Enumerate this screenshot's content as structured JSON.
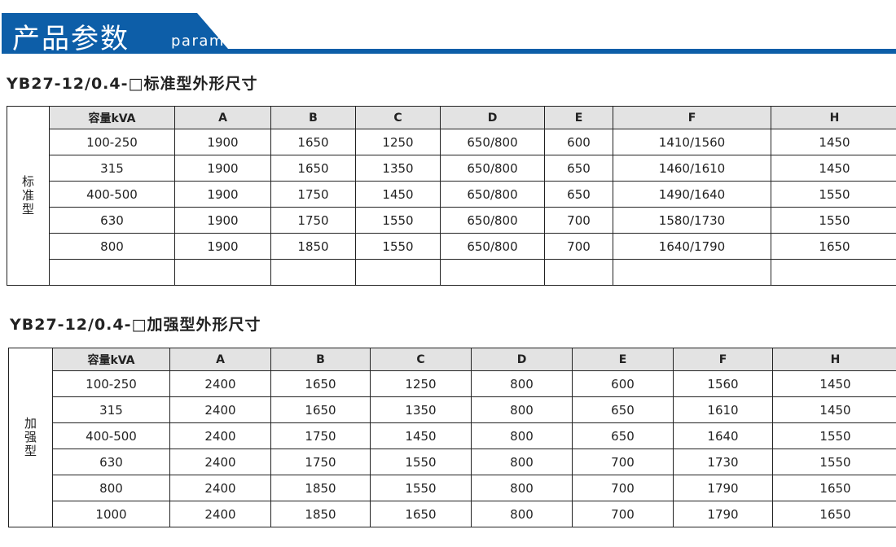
{
  "header": {
    "title": "产品参数",
    "subtitle": "parameter",
    "color": "#0d5ea8"
  },
  "standard": {
    "title": "YB27-12/0.4-□标准型外形尺寸",
    "side_label": "标准型",
    "columns": [
      "容量kVA",
      "A",
      "B",
      "C",
      "D",
      "E",
      "F",
      "H"
    ],
    "rows": [
      [
        "100-250",
        "1900",
        "1650",
        "1250",
        "650/800",
        "600",
        "1410/1560",
        "1450"
      ],
      [
        "315",
        "1900",
        "1650",
        "1350",
        "650/800",
        "650",
        "1460/1610",
        "1450"
      ],
      [
        "400-500",
        "1900",
        "1750",
        "1450",
        "650/800",
        "650",
        "1490/1640",
        "1550"
      ],
      [
        "630",
        "1900",
        "1750",
        "1550",
        "650/800",
        "700",
        "1580/1730",
        "1550"
      ],
      [
        "800",
        "1900",
        "1850",
        "1550",
        "650/800",
        "700",
        "1640/1790",
        "1650"
      ],
      [
        "",
        "",
        "",
        "",
        "",
        "",
        "",
        ""
      ]
    ]
  },
  "reinforced": {
    "title": "YB27-12/0.4-□加强型外形尺寸",
    "side_label": "加强型",
    "columns": [
      "容量kVA",
      "A",
      "B",
      "C",
      "D",
      "E",
      "F",
      "H"
    ],
    "rows": [
      [
        "100-250",
        "2400",
        "1650",
        "1250",
        "800",
        "600",
        "1560",
        "1450"
      ],
      [
        "315",
        "2400",
        "1650",
        "1350",
        "800",
        "650",
        "1610",
        "1450"
      ],
      [
        "400-500",
        "2400",
        "1750",
        "1450",
        "800",
        "650",
        "1640",
        "1550"
      ],
      [
        "630",
        "2400",
        "1750",
        "1550",
        "800",
        "700",
        "1730",
        "1550"
      ],
      [
        "800",
        "2400",
        "1850",
        "1550",
        "800",
        "700",
        "1790",
        "1650"
      ],
      [
        "1000",
        "2400",
        "1850",
        "1650",
        "800",
        "700",
        "1790",
        "1650"
      ]
    ]
  }
}
